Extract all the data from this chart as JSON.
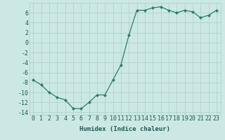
{
  "x": [
    0,
    1,
    2,
    3,
    4,
    5,
    6,
    7,
    8,
    9,
    10,
    11,
    12,
    13,
    14,
    15,
    16,
    17,
    18,
    19,
    20,
    21,
    22,
    23
  ],
  "y": [
    -7.5,
    -8.5,
    -10,
    -11,
    -11.5,
    -13.2,
    -13.3,
    -12,
    -10.5,
    -10.5,
    -7.5,
    -4.5,
    1.5,
    6.5,
    6.5,
    7,
    7.2,
    6.5,
    6,
    6.5,
    6.2,
    5,
    5.5,
    6.5
  ],
  "line_color": "#2d7d6f",
  "marker_color": "#2d7d6f",
  "bg_color": "#cce8e4",
  "grid_color": "#aacfca",
  "tick_label_color": "#1a5c52",
  "xlabel": "Humidex (Indice chaleur)",
  "xlim": [
    -0.5,
    23.5
  ],
  "ylim": [
    -14.5,
    8
  ],
  "yticks": [
    -14,
    -12,
    -10,
    -8,
    -6,
    -4,
    -2,
    0,
    2,
    4,
    6
  ],
  "xticks": [
    0,
    1,
    2,
    3,
    4,
    5,
    6,
    7,
    8,
    9,
    10,
    11,
    12,
    13,
    14,
    15,
    16,
    17,
    18,
    19,
    20,
    21,
    22,
    23
  ],
  "xlabel_fontsize": 6.5,
  "tick_fontsize": 6
}
